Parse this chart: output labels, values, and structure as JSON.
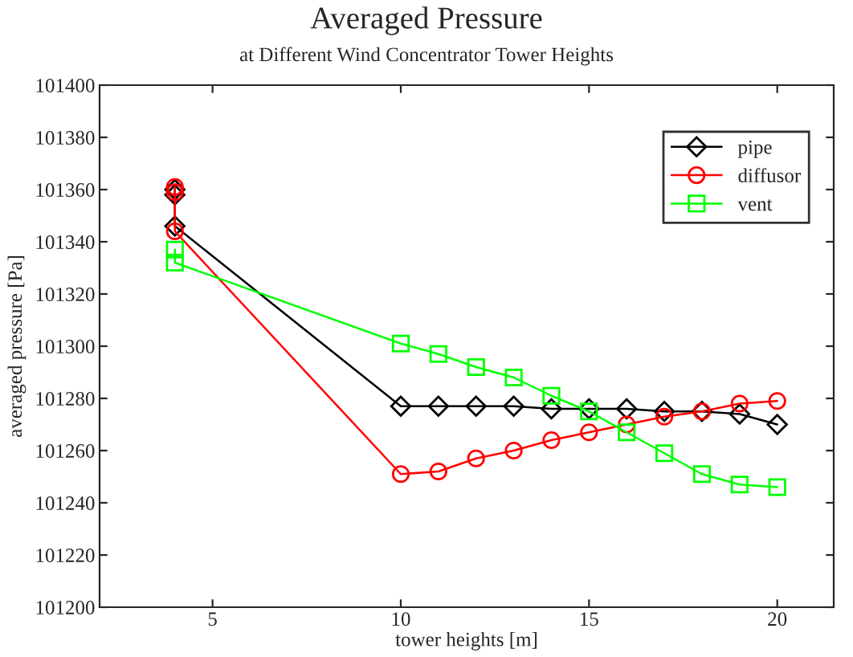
{
  "chart_data": {
    "type": "line",
    "title": "Averaged Pressure",
    "subtitle": "at Different Wind Concentrator Tower Heights",
    "xlabel": "tower heights [m]",
    "ylabel": "averaged pressure [Pa]",
    "xlim": [
      2,
      21.5
    ],
    "xticks": [
      5,
      10,
      15,
      20
    ],
    "ylim": [
      101200,
      101400
    ],
    "yticks": [
      101200,
      101220,
      101240,
      101260,
      101280,
      101300,
      101320,
      101340,
      101360,
      101380,
      101400
    ],
    "grid": false,
    "legend": "top right",
    "series": [
      {
        "name": "pipe",
        "color": "#000000",
        "marker": "diamond",
        "x": [
          4,
          4,
          4,
          10,
          11,
          12,
          13,
          14,
          15,
          16,
          17,
          18,
          19,
          20
        ],
        "values": [
          101360,
          101358,
          101346,
          101277,
          101277,
          101277,
          101277,
          101276,
          101276,
          101276,
          101275,
          101275,
          101274,
          101270
        ]
      },
      {
        "name": "diffusor",
        "color": "#ff0000",
        "marker": "circle",
        "x": [
          4,
          4,
          4,
          10,
          11,
          12,
          13,
          14,
          15,
          16,
          17,
          18,
          19,
          20
        ],
        "values": [
          101361,
          101359,
          101344,
          101251,
          101252,
          101257,
          101260,
          101264,
          101267,
          101270,
          101273,
          101275,
          101278,
          101279
        ]
      },
      {
        "name": "vent",
        "color": "#00ff00",
        "marker": "square",
        "x": [
          4,
          4,
          10,
          11,
          12,
          13,
          14,
          15,
          16,
          17,
          18,
          19,
          20
        ],
        "values": [
          101337,
          101332,
          101301,
          101297,
          101292,
          101288,
          101281,
          101275,
          101267,
          101259,
          101251,
          101247,
          101246
        ]
      }
    ]
  }
}
